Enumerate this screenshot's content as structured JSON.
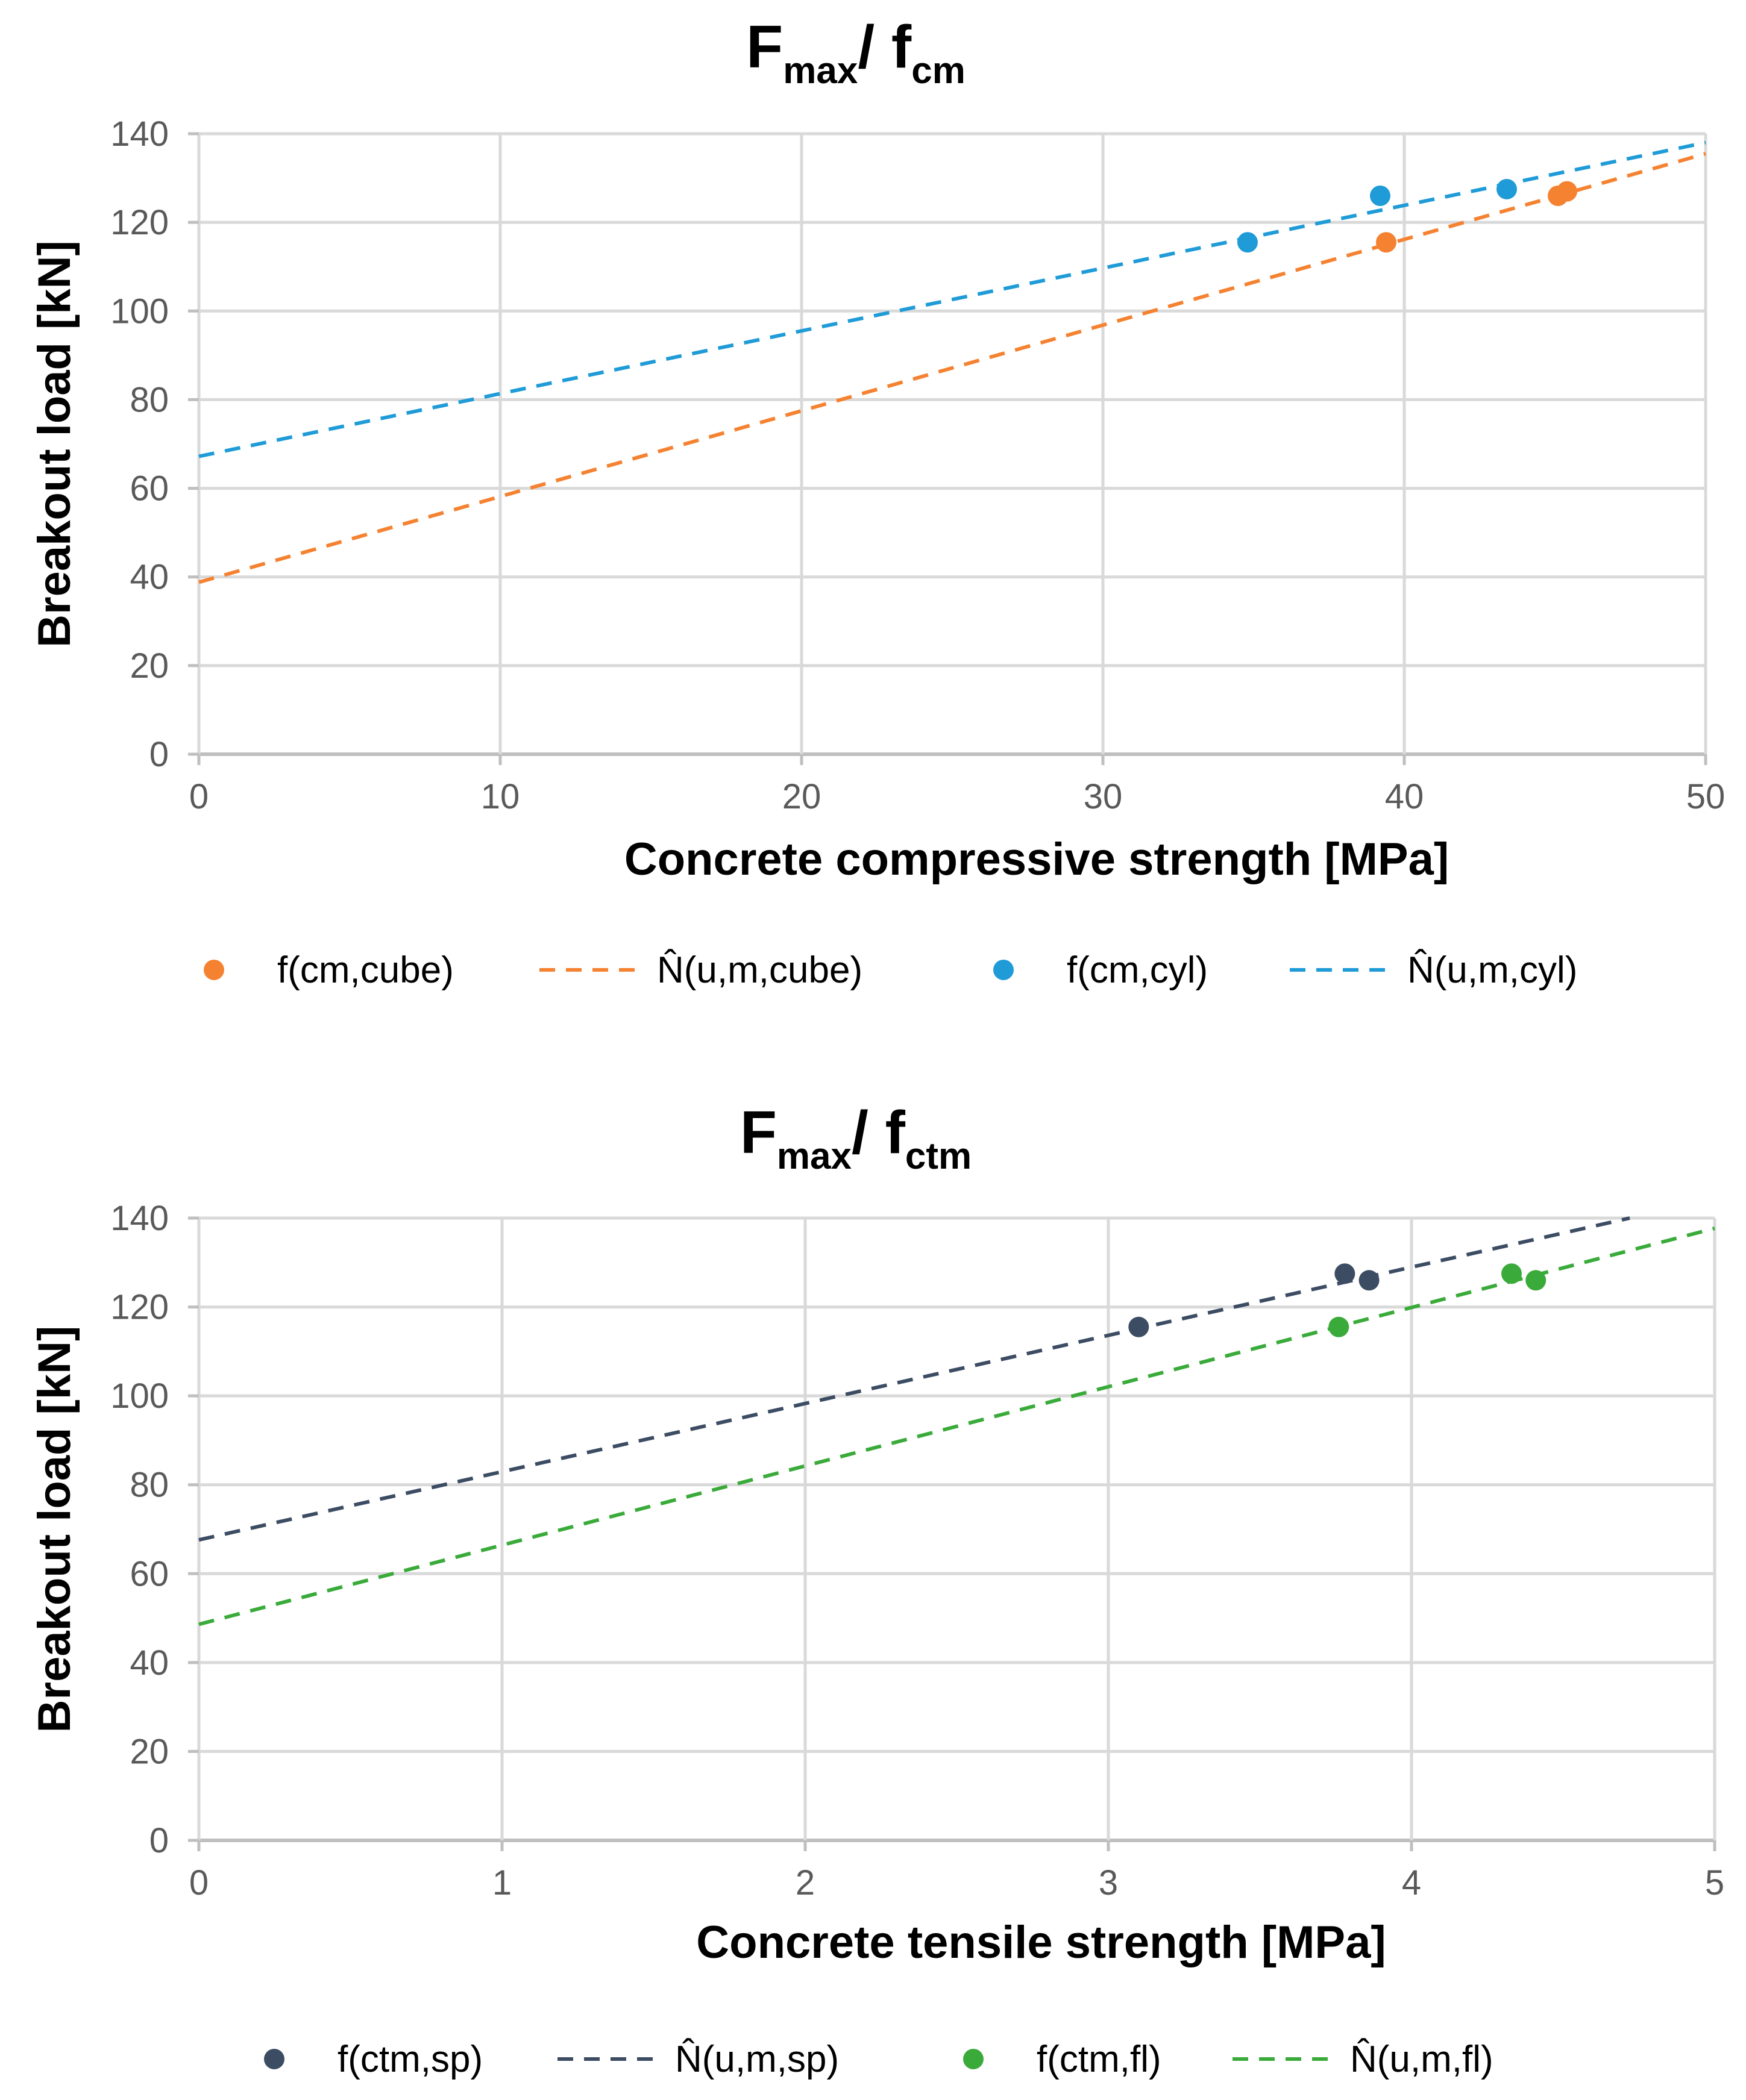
{
  "chart_data": [
    {
      "type": "scatter",
      "title": {
        "main": "F",
        "sub1": "max",
        "slash": "/ f",
        "sub2": "cm"
      },
      "xlabel": "Concrete compressive strength [MPa]",
      "ylabel": "Breakout load [kN]",
      "xlim": [
        0,
        50
      ],
      "ylim": [
        0,
        140
      ],
      "xticks": [
        "0",
        "10",
        "20",
        "30",
        "40",
        "50"
      ],
      "yticks": [
        "0",
        "20",
        "40",
        "60",
        "80",
        "100",
        "120",
        "140"
      ],
      "grid": true,
      "legend_position": "bottom",
      "series": [
        {
          "name": "f(cm,cube)",
          "kind": "points",
          "color": "#f58231",
          "points": [
            [
              39.4,
              115.5
            ],
            [
              45.1,
              126.0
            ],
            [
              45.4,
              127.0
            ]
          ]
        },
        {
          "name": "N̂(u,m,cube)",
          "kind": "dashed-line",
          "color": "#f58231",
          "points": [
            [
              0,
              38.8
            ],
            [
              50,
              135.5
            ]
          ]
        },
        {
          "name": "f(cm,cyl)",
          "kind": "points",
          "color": "#1f9bd7",
          "points": [
            [
              34.8,
              115.5
            ],
            [
              39.2,
              126.0
            ],
            [
              43.4,
              127.5
            ]
          ]
        },
        {
          "name": "N̂(u,m,cyl)",
          "kind": "dashed-line",
          "color": "#1f9bd7",
          "points": [
            [
              0,
              67.2
            ],
            [
              50,
              138.0
            ]
          ]
        }
      ]
    },
    {
      "type": "scatter",
      "title": {
        "main": "F",
        "sub1": "max",
        "slash": "/ f",
        "sub2": "ctm"
      },
      "xlabel": "Concrete tensile strength [MPa]",
      "ylabel": "Breakout load [kN]",
      "xlim": [
        0,
        5
      ],
      "ylim": [
        0,
        140
      ],
      "xticks": [
        "0",
        "1",
        "2",
        "3",
        "4",
        "5"
      ],
      "yticks": [
        "0",
        "20",
        "40",
        "60",
        "80",
        "100",
        "120",
        "140"
      ],
      "grid": true,
      "legend_position": "bottom",
      "series": [
        {
          "name": "f(ctm,sp)",
          "kind": "points",
          "color": "#3c4c63",
          "points": [
            [
              3.1,
              115.5
            ],
            [
              3.78,
              127.5
            ],
            [
              3.86,
              126.0
            ]
          ]
        },
        {
          "name": "N̂(u,m,sp)",
          "kind": "dashed-line",
          "color": "#3c4c63",
          "points": [
            [
              0,
              67.6
            ],
            [
              4.72,
              140.0
            ]
          ]
        },
        {
          "name": "f(ctm,fl)",
          "kind": "points",
          "color": "#3aab3a",
          "points": [
            [
              3.76,
              115.5
            ],
            [
              4.33,
              127.5
            ],
            [
              4.41,
              126.0
            ]
          ]
        },
        {
          "name": "N̂(u,m,fl)",
          "kind": "dashed-line",
          "color": "#3aab3a",
          "points": [
            [
              0,
              48.6
            ],
            [
              5.0,
              137.7
            ]
          ]
        }
      ]
    }
  ]
}
